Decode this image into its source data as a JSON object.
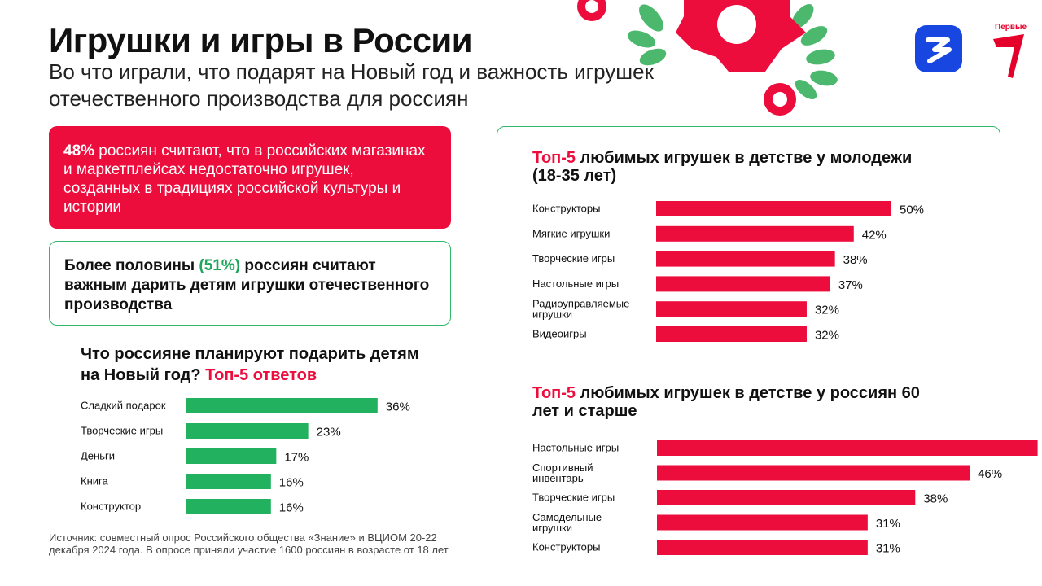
{
  "header": {
    "title": "Игрушки и игры в России",
    "subtitle": "Во что играли, что подарят на Новый год и важность игрушек отечественного производства для россиян"
  },
  "brand": {
    "logo_text": "Первые",
    "red": "#ec0d3d",
    "green": "#22b15f",
    "blue": "#1747e0"
  },
  "red_box": {
    "highlight": "48%",
    "text": " россиян считают, что в российских магазинах и маркетплейсах недостаточно игрушек, созданных в традициях российской культуры и истории"
  },
  "green_box": {
    "before": "Более половины ",
    "highlight": "(51%)",
    "after": " россиян считают важным дарить детям игрушки отечественного производства"
  },
  "gift_chart_title": {
    "main": "Что россияне планируют подарить детям на Новый год? ",
    "highlight": "Топ-5 ответов"
  },
  "young_title": {
    "highlight": "Топ-5",
    "main": " любимых игрушек в детстве у молодежи (18-35 лет)"
  },
  "senior_title": {
    "highlight": "Топ-5",
    "main": " любимых игрушек в детстве у россиян 60 лет и старше"
  },
  "source": "Источник: совместный опрос Российского общества «Знание» и ВЦИОМ 20-22 декабря 2024 года. В опросе приняли участие 1600 россиян в возрасте от 18 лет",
  "chart_data": [
    {
      "id": "gifts",
      "type": "bar",
      "orientation": "horizontal",
      "title": "Что россияне планируют подарить детям на Новый год? Топ-5 ответов",
      "categories": [
        "Сладкий подарок",
        "Творческие игры",
        "Деньги",
        "Книга",
        "Конструктор"
      ],
      "values": [
        36,
        23,
        17,
        16,
        16
      ],
      "unit": "%",
      "color": "#22b15f"
    },
    {
      "id": "young",
      "type": "bar",
      "orientation": "horizontal",
      "title": "Топ-5 любимых игрушек в детстве у молодежи (18-35 лет)",
      "categories": [
        "Конструкторы",
        "Мягкие игрушки",
        "Творческие игры",
        "Настольные игры",
        "Радиоуправляемые игрушки",
        "Видеоигры"
      ],
      "values": [
        50,
        42,
        38,
        37,
        32,
        32
      ],
      "unit": "%",
      "color": "#ec0d3d"
    },
    {
      "id": "senior",
      "type": "bar",
      "orientation": "horizontal",
      "title": "Топ-5 любимых игрушек в детстве у россиян 60 лет и старше",
      "categories": [
        "Настольные игры",
        "Спортивный инвентарь",
        "Творческие игры",
        "Самодельные игрушки",
        "Конструкторы"
      ],
      "values": [
        56,
        46,
        38,
        31,
        31
      ],
      "unit": "%",
      "color": "#ec0d3d"
    }
  ]
}
